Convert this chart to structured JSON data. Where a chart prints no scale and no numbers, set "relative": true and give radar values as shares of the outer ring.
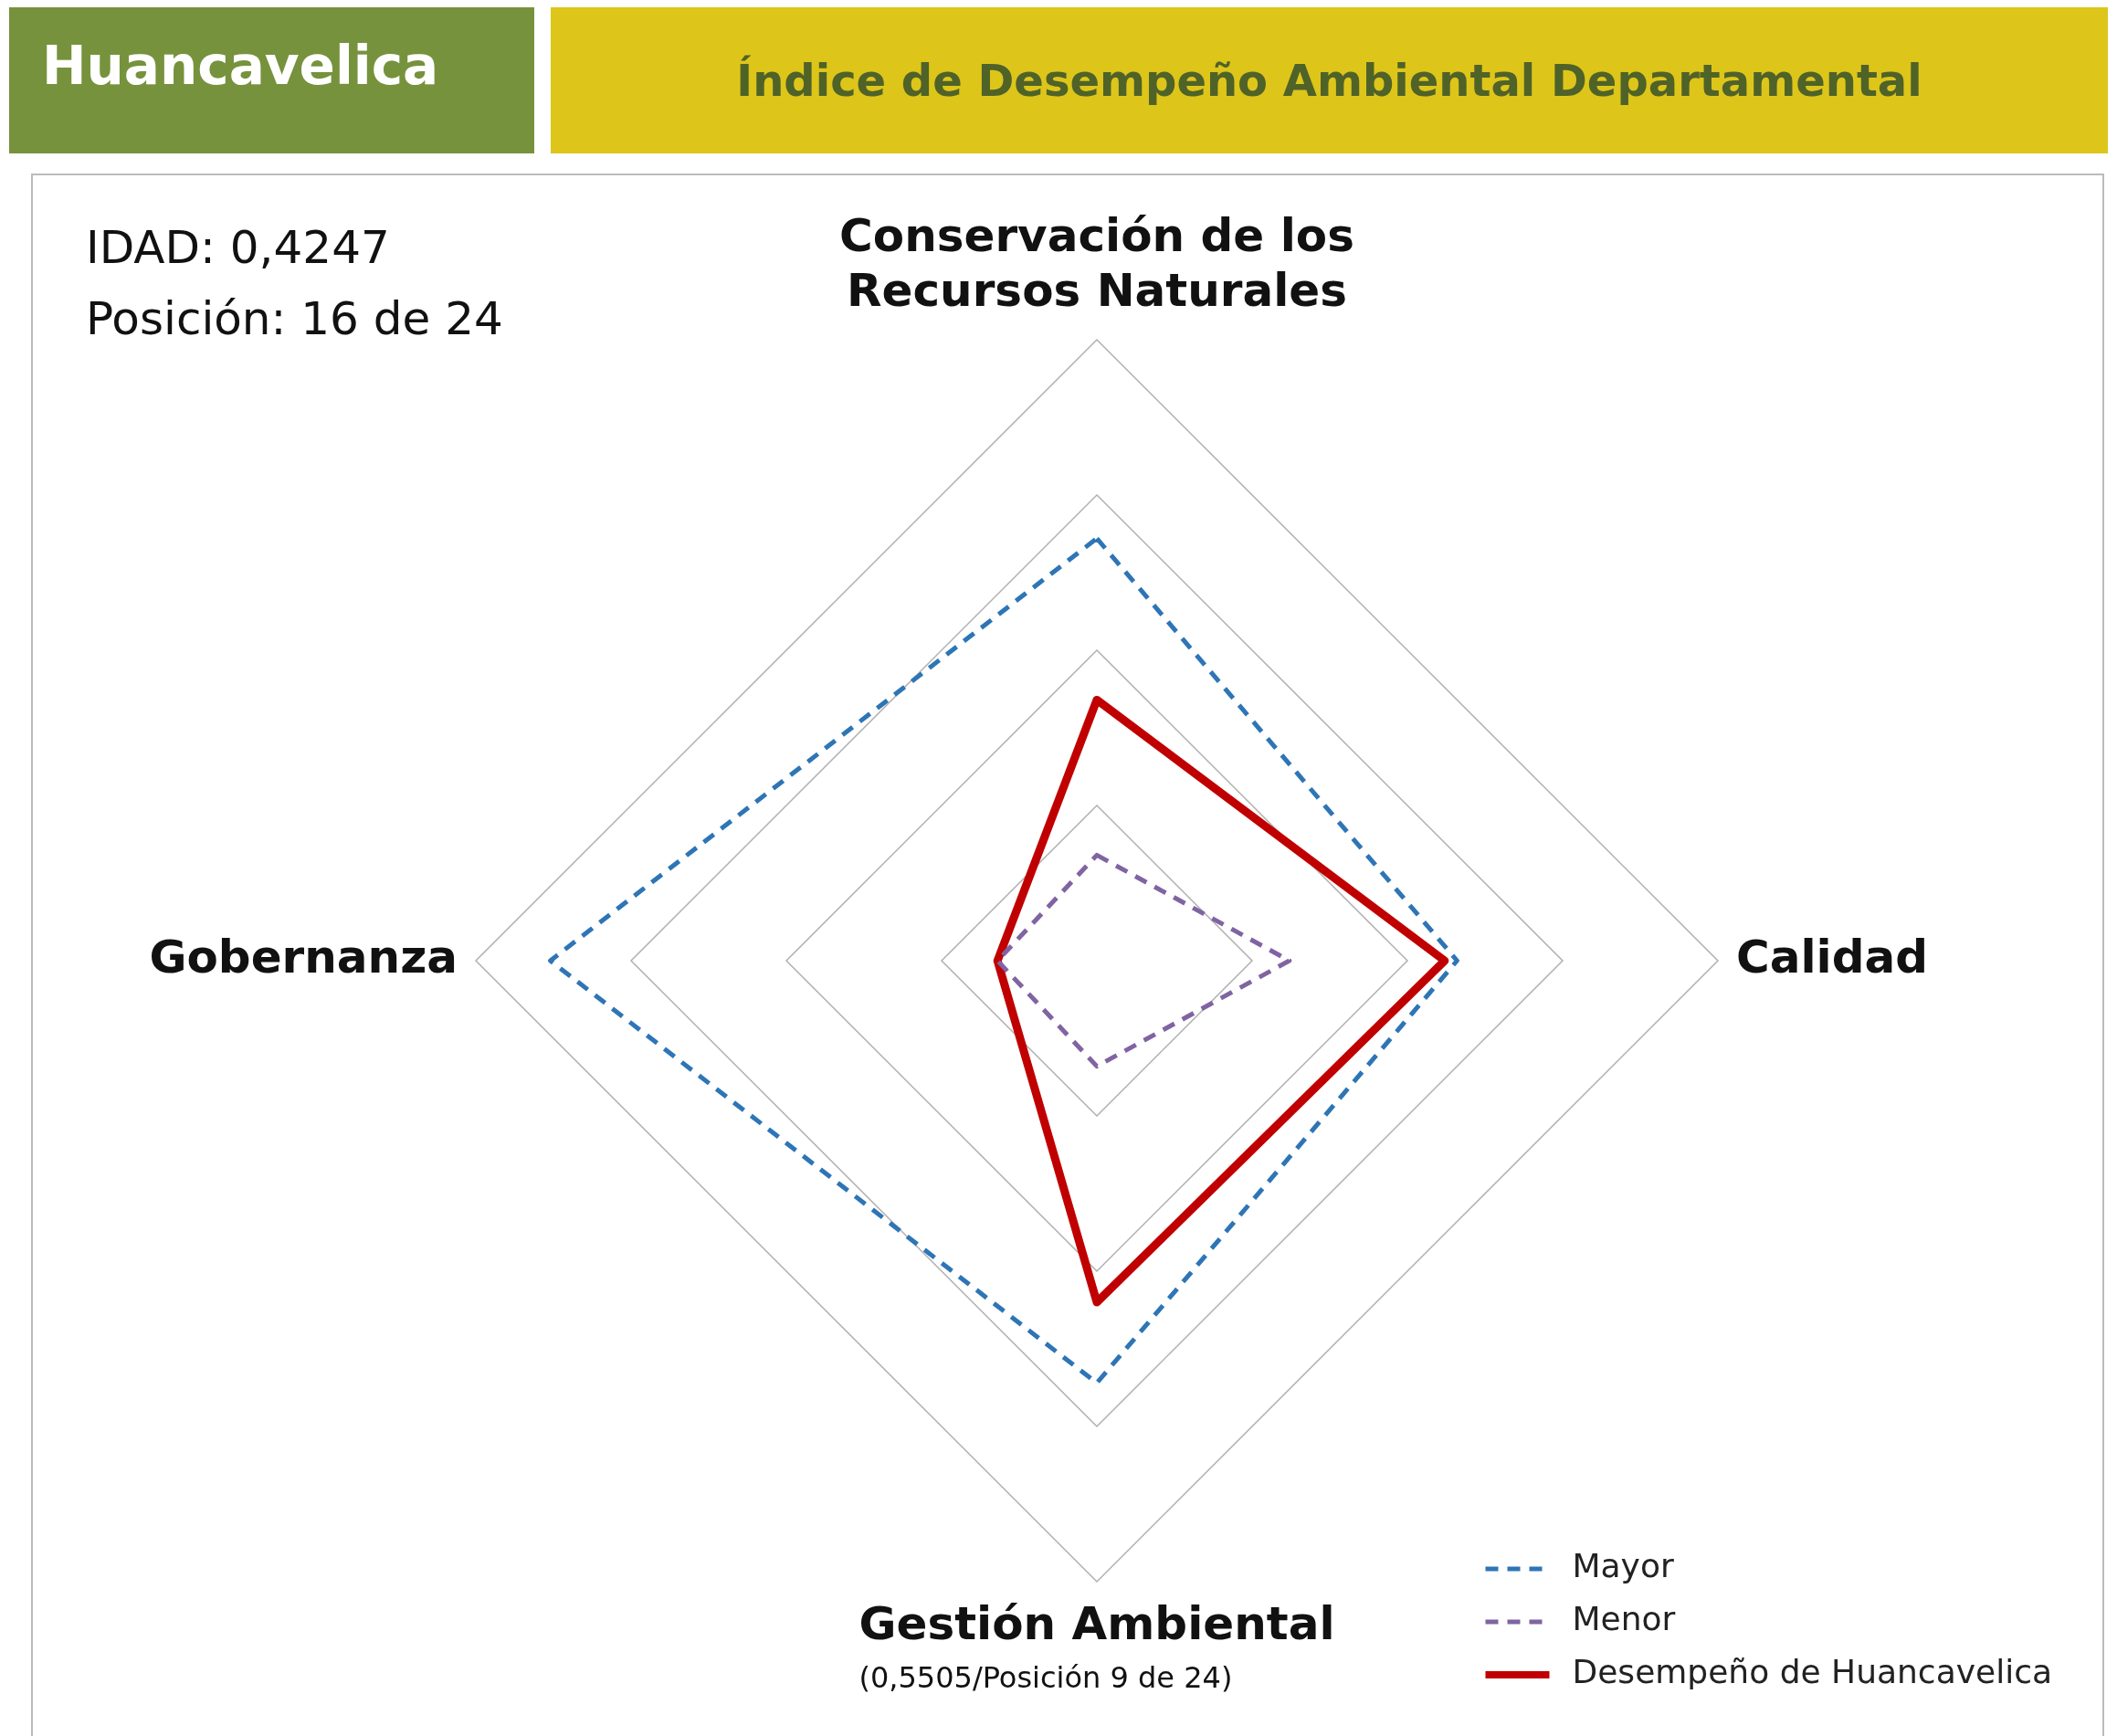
{
  "chart_data": {
    "type": "radar",
    "title": "Índice de Desempeño Ambiental Departamental",
    "subtitle": "Huancavelica",
    "categories": [
      "Conservación de los Recursos Naturales",
      "Calidad",
      "Gestión Ambiental",
      "Gobernanza"
    ],
    "relative": true,
    "grid": true,
    "legend": "bottom right",
    "marker": "none",
    "annotations": [
      "IDAD: 0,4247",
      "Posición: 16 de 24",
      "(0,5505/Posición 9 de 24)"
    ],
    "series": [
      {
        "name": "Mayor",
        "color": "#2e75b6",
        "line_style": "dashed",
        "values": [
          0.68,
          0.58,
          0.68,
          0.88
        ]
      },
      {
        "name": "Menor",
        "color": "#8064a2",
        "line_style": "dashed",
        "values": [
          0.17,
          0.31,
          0.17,
          0.16
        ]
      },
      {
        "name": "Desempeño de Huancavelica",
        "color": "#c00000",
        "line_style": "solid",
        "values": [
          0.42,
          0.56,
          0.55,
          0.16
        ]
      }
    ]
  }
}
